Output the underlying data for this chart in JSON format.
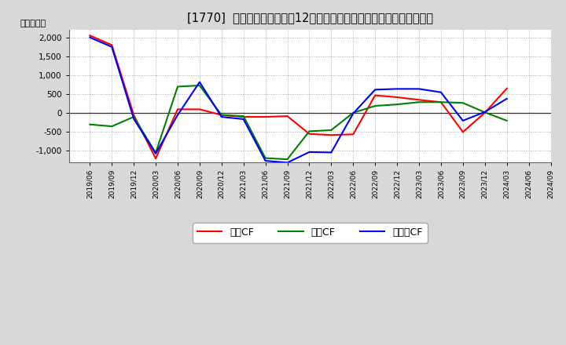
{
  "title": "[1770]  キャッシュフローの12か月移動合計の対前年同期増減額の推移",
  "ylabel": "（百万円）",
  "background_color": "#d8d8d8",
  "plot_background_color": "#ffffff",
  "x_labels": [
    "2019/06",
    "2019/09",
    "2019/12",
    "2020/03",
    "2020/06",
    "2020/09",
    "2020/12",
    "2021/03",
    "2021/06",
    "2021/09",
    "2021/12",
    "2022/03",
    "2022/06",
    "2022/09",
    "2022/12",
    "2023/03",
    "2023/06",
    "2023/09",
    "2023/12",
    "2024/03",
    "2024/06",
    "2024/09"
  ],
  "operating_cf": [
    2050,
    1800,
    -50,
    -1200,
    100,
    100,
    -50,
    -100,
    -100,
    -80,
    -550,
    -580,
    -560,
    470,
    420,
    350,
    290,
    -500,
    10,
    650,
    null,
    null
  ],
  "investing_cf": [
    -300,
    -350,
    -100,
    -1050,
    700,
    730,
    -50,
    -80,
    -1190,
    -1220,
    -480,
    -450,
    10,
    190,
    230,
    290,
    290,
    270,
    20,
    -200,
    null,
    null
  ],
  "free_cf": [
    2000,
    1750,
    -150,
    -1070,
    -50,
    820,
    -100,
    -160,
    -1260,
    -1310,
    -1030,
    -1040,
    -10,
    620,
    640,
    640,
    550,
    -200,
    30,
    380,
    null,
    null
  ],
  "legend_labels": [
    "営業CF",
    "投資CF",
    "フリーCF"
  ],
  "line_colors": [
    "#ff0000",
    "#008000",
    "#0000ff"
  ],
  "ylim": [
    -1300,
    2200
  ],
  "yticks": [
    -1000,
    -500,
    0,
    500,
    1000,
    1500,
    2000
  ],
  "grid_color": "#999999",
  "title_fontsize": 10.5,
  "axis_fontsize": 8,
  "legend_fontsize": 9
}
